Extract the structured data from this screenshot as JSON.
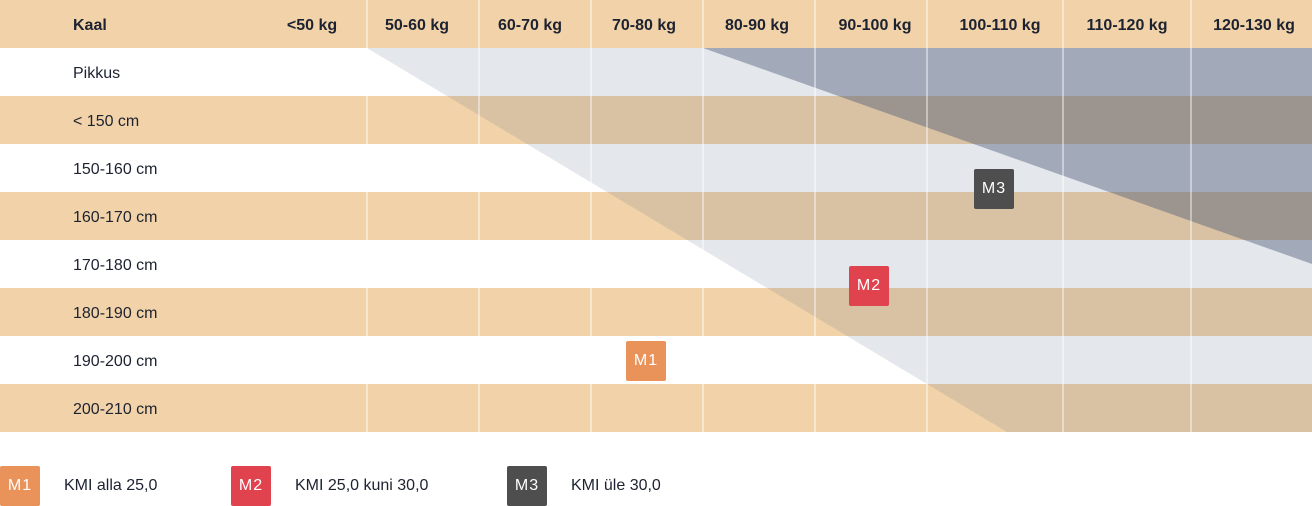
{
  "table": {
    "corner_label": "Kaal",
    "height_header": "Pikkus",
    "weight_columns": [
      "<50 kg",
      "50-60 kg",
      "60-70 kg",
      "70-80 kg",
      "80-90 kg",
      "90-100 kg",
      "100-110 kg",
      "110-120 kg",
      "120-130 kg"
    ],
    "height_rows": [
      "< 150 cm",
      "150-160 cm",
      "160-170 cm",
      "170-180 cm",
      "180-190 cm",
      "190-200 cm",
      "200-210 cm"
    ]
  },
  "markers": [
    {
      "label": "M1",
      "color": "#e9925a",
      "weight_category": "70-80 kg",
      "height_category": "190-200 cm"
    },
    {
      "label": "M2",
      "color": "#e1434e",
      "weight_category": "90-100 kg",
      "height_category": "180-190 cm"
    },
    {
      "label": "M3",
      "color": "#4e4e4e",
      "weight_category": "100-110 kg",
      "height_category": "160-170 cm"
    }
  ],
  "legend": [
    {
      "badge": "M1",
      "text": "KMI alla 25,0",
      "color": "#e9925a"
    },
    {
      "badge": "M2",
      "text": "KMI 25,0 kuni 30,0",
      "color": "#e1434e"
    },
    {
      "badge": "M3",
      "text": "KMI üle 30,0",
      "color": "#4e4e4e"
    }
  ],
  "colors": {
    "stripe": "#f2d3a9",
    "band_overweight": "#5a6a8a",
    "band_obese": "#3f5170"
  },
  "chart_data": {
    "type": "table",
    "xlabel": "Kaal",
    "ylabel": "Pikkus",
    "categories": [
      "<50 kg",
      "50-60 kg",
      "60-70 kg",
      "70-80 kg",
      "80-90 kg",
      "90-100 kg",
      "100-110 kg",
      "110-120 kg",
      "120-130 kg"
    ],
    "rows": [
      "< 150 cm",
      "150-160 cm",
      "160-170 cm",
      "170-180 cm",
      "180-190 cm",
      "190-200 cm",
      "200-210 cm"
    ],
    "bmi_zones": [
      {
        "name": "KMI alla 25,0",
        "marker": "M1",
        "bmi_max": 25.0
      },
      {
        "name": "KMI 25,0 kuni 30,0",
        "marker": "M2",
        "bmi_min": 25.0,
        "bmi_max": 30.0
      },
      {
        "name": "KMI üle 30,0",
        "marker": "M3",
        "bmi_min": 30.0
      }
    ]
  }
}
